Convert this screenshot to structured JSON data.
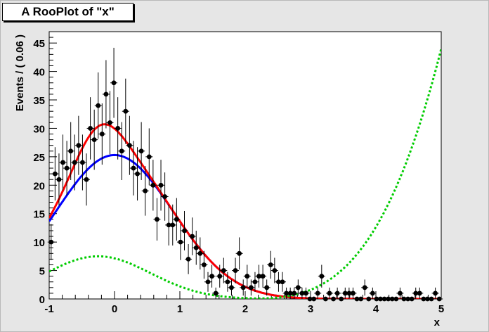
{
  "window": {
    "title": "A RooPlot of \"x\""
  },
  "chart_data": {
    "type": "scatter",
    "title": "A RooPlot of \"x\"",
    "xlabel": "x",
    "ylabel": "Events / ( 0.06 )",
    "xlim": [
      -1,
      5
    ],
    "ylim": [
      0,
      47
    ],
    "x_ticks": [
      -1,
      0,
      1,
      2,
      3,
      4,
      5
    ],
    "y_ticks": [
      0,
      5,
      10,
      15,
      20,
      25,
      30,
      35,
      40,
      45
    ],
    "grid": false,
    "series": [
      {
        "kind": "points_with_errors",
        "color": "#000000",
        "x": [
          -0.97,
          -0.91,
          -0.85,
          -0.79,
          -0.73,
          -0.67,
          -0.61,
          -0.55,
          -0.49,
          -0.43,
          -0.37,
          -0.31,
          -0.25,
          -0.19,
          -0.13,
          -0.07,
          -0.01,
          0.05,
          0.11,
          0.17,
          0.23,
          0.29,
          0.35,
          0.41,
          0.47,
          0.53,
          0.59,
          0.65,
          0.71,
          0.77,
          0.83,
          0.89,
          0.95,
          1.01,
          1.07,
          1.13,
          1.19,
          1.25,
          1.31,
          1.37,
          1.43,
          1.49,
          1.55,
          1.61,
          1.67,
          1.73,
          1.79,
          1.85,
          1.91,
          1.97,
          2.03,
          2.09,
          2.15,
          2.21,
          2.27,
          2.33,
          2.39,
          2.45,
          2.51,
          2.57,
          2.63,
          2.69,
          2.75,
          2.81,
          2.87,
          2.93,
          2.99,
          3.05,
          3.11,
          3.17,
          3.23,
          3.29,
          3.35,
          3.41,
          3.47,
          3.53,
          3.59,
          3.65,
          3.71,
          3.77,
          3.83,
          3.89,
          3.95,
          4.01,
          4.07,
          4.13,
          4.19,
          4.25,
          4.31,
          4.37,
          4.43,
          4.49,
          4.55,
          4.61,
          4.67,
          4.73,
          4.79,
          4.85,
          4.91,
          4.97
        ],
        "y": [
          10,
          22,
          21,
          24,
          23,
          26,
          24,
          27,
          24,
          21,
          30,
          28,
          34,
          29,
          36,
          31,
          38,
          30,
          26,
          33,
          27,
          23,
          22,
          26,
          19,
          25,
          20,
          14,
          20,
          18,
          13,
          13,
          14,
          10,
          12,
          7,
          11,
          9,
          8,
          6,
          3,
          4,
          1,
          4,
          5,
          3,
          2,
          5,
          8,
          2,
          4,
          2,
          3,
          4,
          4,
          2,
          6,
          5,
          3,
          3,
          1,
          1,
          1,
          2,
          1,
          1,
          0,
          0,
          1,
          4,
          0,
          1,
          0,
          1,
          0,
          1,
          1,
          1,
          0,
          0,
          2,
          0,
          1,
          0,
          0,
          0,
          0,
          0,
          0,
          1,
          0,
          0,
          0,
          1,
          1,
          0,
          0,
          0,
          1,
          0
        ],
        "error_bars": "sqrt(N)"
      },
      {
        "kind": "curve",
        "color": "#0000ff",
        "name": "",
        "shape": "gaussian",
        "peak_x": 0.0,
        "peak_y": 25.3,
        "sigma": 0.9
      },
      {
        "kind": "curve",
        "color": "#ff0000",
        "name": "",
        "shape": "gaussian_mix",
        "components": [
          [
            0.0,
            25.3,
            0.9
          ],
          [
            -0.25,
            6.0,
            0.35
          ]
        ]
      },
      {
        "kind": "curve",
        "color": "#00cc00",
        "name": "",
        "style": "dotted",
        "shape": "gaussian_plus_cubic",
        "peak_x": -0.25,
        "peak_y": 7.5,
        "sigma": 0.8,
        "tail_at_max": 44
      }
    ]
  }
}
